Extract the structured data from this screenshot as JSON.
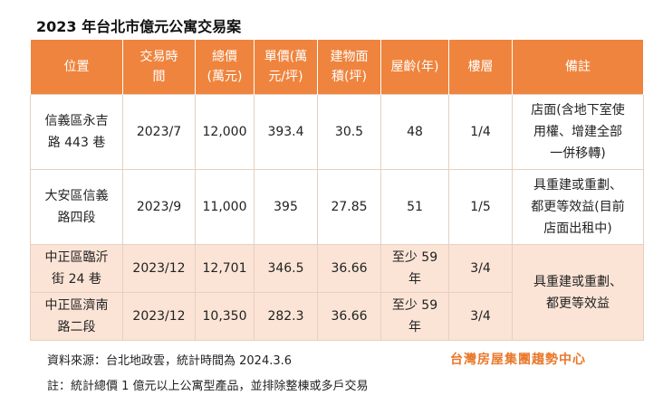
{
  "title": "2023 年台北市億元公寓交易案",
  "table": {
    "header": [
      "位置",
      "交易時\n間",
      "總價\n(萬元)",
      "單價(萬\n元/坪)",
      "建物面\n積(坪)",
      "屋齡(年)",
      "樓層",
      "備註"
    ],
    "rows": [
      [
        "信義區永吉\n路 443 巷",
        "2023/7",
        "12,000",
        "393.4",
        "30.5",
        "48",
        "1/4",
        "店面(含地下室使\n用權、增建全部\n一併移轉)"
      ],
      [
        "大安區信義\n路四段",
        "2023/9",
        "11,000",
        "395",
        "27.85",
        "51",
        "1/5",
        "具重建或重劃、\n都更等效益(目前\n店面出租中)"
      ],
      [
        "中正區臨沂\n街 24 巷",
        "2023/12",
        "12,701",
        "346.5",
        "36.66",
        "至少 59\n年",
        "3/4",
        "具重建或重劃、\n都更等效益"
      ],
      [
        "中正區濟南\n路二段",
        "2023/12",
        "10,350",
        "282.3",
        "36.66",
        "至少 59\n年",
        "3/4"
      ]
    ]
  },
  "footer": {
    "source": "資料來源：台北地政雲，統計時間為 2024.3.6",
    "note": "註：統計總價 1 億元以上公寓型產品，並排除整棟或多戶交易",
    "logo": "台灣房屋集團趨勢中心"
  }
}
